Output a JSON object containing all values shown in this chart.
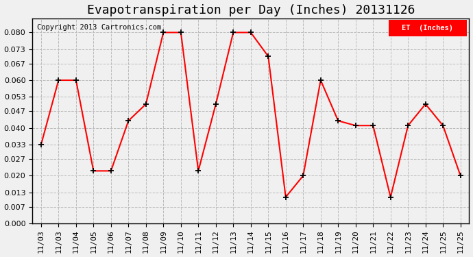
{
  "title": "Evapotranspiration per Day (Inches) 20131126",
  "copyright_text": "Copyright 2013 Cartronics.com",
  "legend_label": "ET  (Inches)",
  "legend_bg": "#ff0000",
  "legend_text_color": "#ffffff",
  "x_labels": [
    "11/03",
    "11/03",
    "11/04",
    "11/05",
    "11/06",
    "11/07",
    "11/08",
    "11/09",
    "11/10",
    "11/11",
    "11/12",
    "11/13",
    "11/14",
    "11/15",
    "11/16",
    "11/17",
    "11/18",
    "11/19",
    "11/20",
    "11/21",
    "11/22",
    "11/23",
    "11/24",
    "11/25",
    "11/25"
  ],
  "y_values": [
    0.033,
    0.06,
    0.06,
    0.022,
    0.022,
    0.043,
    0.05,
    0.08,
    0.08,
    0.022,
    0.05,
    0.08,
    0.08,
    0.07,
    0.011,
    0.02,
    0.06,
    0.043,
    0.041,
    0.041,
    0.011,
    0.041,
    0.05,
    0.041,
    0.02
  ],
  "line_color": "#ff0000",
  "marker_color": "#000000",
  "background_color": "#f0f0f0",
  "grid_color": "#bbbbbb",
  "ylim": [
    0.0,
    0.086
  ],
  "yticks": [
    0.0,
    0.007,
    0.013,
    0.02,
    0.027,
    0.033,
    0.04,
    0.047,
    0.053,
    0.06,
    0.067,
    0.073,
    0.08
  ],
  "title_fontsize": 13,
  "tick_fontsize": 8,
  "copyright_fontsize": 7.5
}
